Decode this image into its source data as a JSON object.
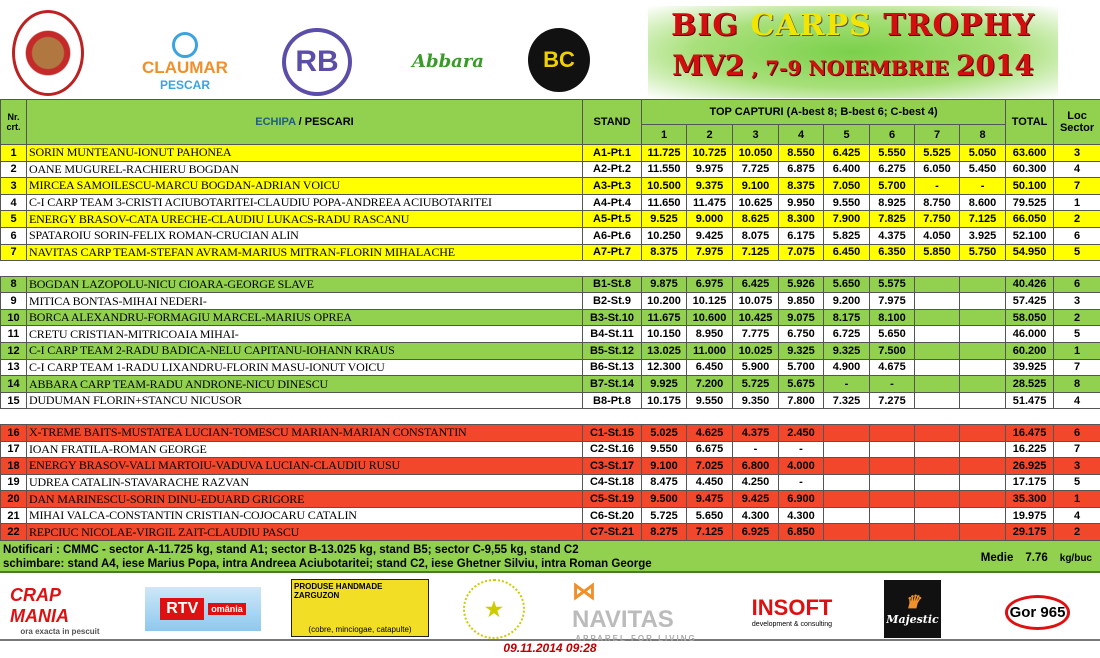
{
  "header": {
    "logos": [
      "LACUL MOARA VLASIEI 2",
      "CLAUMAR",
      "PESCAR",
      "RB",
      "Abbara",
      "BC"
    ],
    "title_part1": "BIG ",
    "title_part2": "CARPS",
    "title_part3": " TROPHY",
    "subtitle_part1": "MV2",
    "subtitle_part2": " , 7-9 NOIEMBRIE ",
    "subtitle_part3": "2014"
  },
  "table": {
    "col_nr": "Nr. crt.",
    "col_echipa": "ECHIPA",
    "col_pescari": " / PESCARI",
    "col_stand": "STAND",
    "col_top": "TOP CAPTURI (A-best 8; B-best 6; C-best 4)",
    "col_total": "TOTAL",
    "col_loc": "Loc Sector",
    "catch_cols": [
      "1",
      "2",
      "3",
      "4",
      "5",
      "6",
      "7",
      "8"
    ],
    "colors": {
      "sector_a": "#ffff00",
      "sector_b": "#92d050",
      "sector_c": "#f2472a"
    },
    "sectors": [
      {
        "rows": [
          {
            "nr": "1",
            "team": "SORIN MUNTEANU-IONUT PAHONEA",
            "stand": "A1-Pt.1",
            "c": [
              "11.725",
              "10.725",
              "10.050",
              "8.550",
              "6.425",
              "5.550",
              "5.525",
              "5.050"
            ],
            "total": "63.600",
            "loc": "3"
          },
          {
            "nr": "2",
            "team": "OANE MUGUREL-RACHIERU BOGDAN",
            "stand": "A2-Pt.2",
            "c": [
              "11.550",
              "9.975",
              "7.725",
              "6.875",
              "6.400",
              "6.275",
              "6.050",
              "5.450"
            ],
            "total": "60.300",
            "loc": "4"
          },
          {
            "nr": "3",
            "team": "MIRCEA SAMOILESCU-MARCU BOGDAN-ADRIAN VOICU",
            "stand": "A3-Pt.3",
            "c": [
              "10.500",
              "9.375",
              "9.100",
              "8.375",
              "7.050",
              "5.700",
              "-",
              "-"
            ],
            "total": "50.100",
            "loc": "7"
          },
          {
            "nr": "4",
            "team": "C-I CARP TEAM 3-CRISTI ACIUBOTARITEI-CLAUDIU POPA-ANDREEA ACIUBOTARITEI",
            "stand": "A4-Pt.4",
            "c": [
              "11.650",
              "11.475",
              "10.625",
              "9.950",
              "9.550",
              "8.925",
              "8.750",
              "8.600"
            ],
            "total": "79.525",
            "loc": "1"
          },
          {
            "nr": "5",
            "team": "ENERGY BRASOV-CATA URECHE-CLAUDIU LUKACS-RADU RASCANU",
            "stand": "A5-Pt.5",
            "c": [
              "9.525",
              "9.000",
              "8.625",
              "8.300",
              "7.900",
              "7.825",
              "7.750",
              "7.125"
            ],
            "total": "66.050",
            "loc": "2"
          },
          {
            "nr": "6",
            "team": "SPATAROIU SORIN-FELIX ROMAN-CRUCIAN ALIN",
            "stand": "A6-Pt.6",
            "c": [
              "10.250",
              "9.425",
              "8.075",
              "6.175",
              "5.825",
              "4.375",
              "4.050",
              "3.925"
            ],
            "total": "52.100",
            "loc": "6"
          },
          {
            "nr": "7",
            "team": "NAVITAS CARP TEAM-STEFAN AVRAM-MARIUS MITRAN-FLORIN MIHALACHE",
            "stand": "A7-Pt.7",
            "c": [
              "8.375",
              "7.975",
              "7.125",
              "7.075",
              "6.450",
              "6.350",
              "5.850",
              "5.750"
            ],
            "total": "54.950",
            "loc": "5"
          }
        ]
      },
      {
        "rows": [
          {
            "nr": "8",
            "team": "BOGDAN LAZOPOLU-NICU CIOARA-GEORGE SLAVE",
            "stand": "B1-St.8",
            "c": [
              "9.875",
              "6.975",
              "6.425",
              "5.926",
              "5.650",
              "5.575",
              "",
              ""
            ],
            "total": "40.426",
            "loc": "6"
          },
          {
            "nr": "9",
            "team": "MITICA BONTAS-MIHAI NEDERI-",
            "stand": "B2-St.9",
            "c": [
              "10.200",
              "10.125",
              "10.075",
              "9.850",
              "9.200",
              "7.975",
              "",
              ""
            ],
            "total": "57.425",
            "loc": "3"
          },
          {
            "nr": "10",
            "team": "BORCA ALEXANDRU-FORMAGIU MARCEL-MARIUS OPREA",
            "stand": "B3-St.10",
            "c": [
              "11.675",
              "10.600",
              "10.425",
              "9.075",
              "8.175",
              "8.100",
              "",
              ""
            ],
            "total": "58.050",
            "loc": "2"
          },
          {
            "nr": "11",
            "team": "CRETU CRISTIAN-MITRICOAIA MIHAI-",
            "stand": "B4-St.11",
            "c": [
              "10.150",
              "8.950",
              "7.775",
              "6.750",
              "6.725",
              "5.650",
              "",
              ""
            ],
            "total": "46.000",
            "loc": "5"
          },
          {
            "nr": "12",
            "team": "C-I CARP TEAM 2-RADU BADICA-NELU CAPITANU-IOHANN KRAUS",
            "stand": "B5-St.12",
            "c": [
              "13.025",
              "11.000",
              "10.025",
              "9.325",
              "9.325",
              "7.500",
              "",
              ""
            ],
            "total": "60.200",
            "loc": "1"
          },
          {
            "nr": "13",
            "team": "C-I CARP TEAM 1-RADU LIXANDRU-FLORIN MASU-IONUT VOICU",
            "stand": "B6-St.13",
            "c": [
              "12.300",
              "6.450",
              "5.900",
              "5.700",
              "4.900",
              "4.675",
              "",
              ""
            ],
            "total": "39.925",
            "loc": "7"
          },
          {
            "nr": "14",
            "team": "ABBARA CARP TEAM-RADU ANDRONE-NICU DINESCU",
            "stand": "B7-St.14",
            "c": [
              "9.925",
              "7.200",
              "5.725",
              "5.675",
              "-",
              "-",
              "",
              ""
            ],
            "total": "28.525",
            "loc": "8"
          },
          {
            "nr": "15",
            "team": "DUDUMAN FLORIN+STANCU NICUSOR",
            "stand": "B8-Pt.8",
            "c": [
              "10.175",
              "9.550",
              "9.350",
              "7.800",
              "7.325",
              "7.275",
              "",
              ""
            ],
            "total": "51.475",
            "loc": "4"
          }
        ]
      },
      {
        "rows": [
          {
            "nr": "16",
            "team": "X-TREME BAITS-MUSTATEA LUCIAN-TOMESCU MARIAN-MARIAN CONSTANTIN",
            "stand": "C1-St.15",
            "c": [
              "5.025",
              "4.625",
              "4.375",
              "2.450",
              "",
              "",
              "",
              ""
            ],
            "total": "16.475",
            "loc": "6"
          },
          {
            "nr": "17",
            "team": "IOAN FRATILA-ROMAN GEORGE",
            "stand": "C2-St.16",
            "c": [
              "9.550",
              "6.675",
              "-",
              "-",
              "",
              "",
              "",
              ""
            ],
            "total": "16.225",
            "loc": "7"
          },
          {
            "nr": "18",
            "team": "ENERGY BRASOV-VALI MARTOIU-VADUVA LUCIAN-CLAUDIU RUSU",
            "stand": "C3-St.17",
            "c": [
              "9.100",
              "7.025",
              "6.800",
              "4.000",
              "",
              "",
              "",
              ""
            ],
            "total": "26.925",
            "loc": "3"
          },
          {
            "nr": "19",
            "team": "UDREA CATALIN-STAVARACHE RAZVAN",
            "stand": "C4-St.18",
            "c": [
              "8.475",
              "4.450",
              "4.250",
              "-",
              "",
              "",
              "",
              ""
            ],
            "total": "17.175",
            "loc": "5"
          },
          {
            "nr": "20",
            "team": "DAN MARINESCU-SORIN DINU-EDUARD GRIGORE",
            "stand": "C5-St.19",
            "c": [
              "9.500",
              "9.475",
              "9.425",
              "6.900",
              "",
              "",
              "",
              ""
            ],
            "total": "35.300",
            "loc": "1"
          },
          {
            "nr": "21",
            "team": "MIHAI VALCA-CONSTANTIN CRISTIAN-COJOCARU CATALIN",
            "stand": "C6-St.20",
            "c": [
              "5.725",
              "5.650",
              "4.300",
              "4.300",
              "",
              "",
              "",
              ""
            ],
            "total": "19.975",
            "loc": "4"
          },
          {
            "nr": "22",
            "team": "REPCIUC NICOLAE-VIRGIL ZAIT-CLAUDIU PASCU",
            "stand": "C7-St.21",
            "c": [
              "8.275",
              "7.125",
              "6.925",
              "6.850",
              "",
              "",
              "",
              ""
            ],
            "total": "29.175",
            "loc": "2"
          }
        ]
      }
    ]
  },
  "notes": {
    "line1": "Notificari : CMMC - sector A-11.725 kg, stand A1; sector B-13.025 kg, stand B5; sector C-9,55 kg, stand C2",
    "line2": "schimbare: stand A4, iese Marius Popa, intra Andreea Aciubotaritei; stand C2, iese Ghetner Silviu, intra Roman George",
    "medie_label": "Medie",
    "medie_value": "7.76",
    "medie_unit": "kg/buc"
  },
  "sponsors": [
    "CRAP MANIA",
    "ora exacta in pescuit",
    "RTV",
    "omânia",
    "PRODUSE HANDMADE ZARGUZON",
    "(cobre, minciogae, catapulte)",
    "NAVITAS",
    "APPAREL FOR LIVING",
    "INSOFT",
    "development & consulting",
    "Majestic",
    "Gor 965"
  ],
  "footer": {
    "timestamp": "09.11.2014 09:28"
  }
}
